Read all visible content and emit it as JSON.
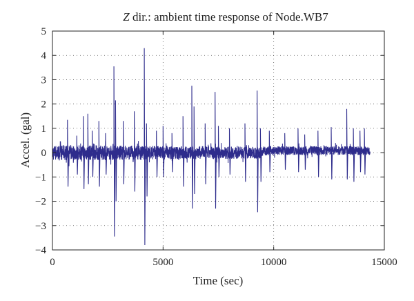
{
  "chart_data": {
    "type": "line",
    "title_italic": "Z",
    "title_rest": " dir.: ambient time response of Node.WB7",
    "xlabel": "Time (sec)",
    "ylabel": "Accel. (gal)",
    "xlim": [
      0,
      15000
    ],
    "ylim": [
      -4,
      5
    ],
    "xticks": [
      0,
      5000,
      10000,
      15000
    ],
    "xtick_labels": [
      "0",
      "5000",
      "10000",
      "15000"
    ],
    "yticks": [
      -4,
      -3,
      -2,
      -1,
      0,
      1,
      2,
      3,
      4,
      5
    ],
    "ytick_labels": [
      "−4",
      "−3",
      "−2",
      "−1",
      "0",
      "1",
      "2",
      "3",
      "4",
      "5"
    ],
    "grid": true,
    "line_color": "#2e2c8c",
    "series": [
      {
        "x_range": [
          0,
          14350
        ],
        "spikes": [
          {
            "x": 680,
            "max": 1.35,
            "min": -1.4
          },
          {
            "x": 1100,
            "max": 0.7,
            "min": -0.9
          },
          {
            "x": 1400,
            "max": 1.5,
            "min": -1.5
          },
          {
            "x": 1600,
            "max": 1.6,
            "min": -1.3
          },
          {
            "x": 1800,
            "max": 0.9,
            "min": -1.0
          },
          {
            "x": 2100,
            "max": 1.3,
            "min": -1.4
          },
          {
            "x": 2400,
            "max": 0.8,
            "min": -0.9
          },
          {
            "x": 2780,
            "max": 3.55,
            "min": -3.45
          },
          {
            "x": 2850,
            "max": 2.15,
            "min": -2.0
          },
          {
            "x": 3200,
            "max": 1.3,
            "min": -1.3
          },
          {
            "x": 3700,
            "max": 1.7,
            "min": -1.6
          },
          {
            "x": 4150,
            "max": 4.3,
            "min": -3.8
          },
          {
            "x": 4250,
            "max": 1.2,
            "min": -1.8
          },
          {
            "x": 4700,
            "max": 0.9,
            "min": -1.0
          },
          {
            "x": 5000,
            "max": 1.1,
            "min": -1.0
          },
          {
            "x": 5400,
            "max": 0.8,
            "min": -0.8
          },
          {
            "x": 5900,
            "max": 1.5,
            "min": -1.4
          },
          {
            "x": 6300,
            "max": 2.75,
            "min": -2.3
          },
          {
            "x": 6400,
            "max": 1.9,
            "min": -1.7
          },
          {
            "x": 6900,
            "max": 1.2,
            "min": -1.3
          },
          {
            "x": 7350,
            "max": 2.5,
            "min": -2.3
          },
          {
            "x": 7500,
            "max": 1.1,
            "min": -1.0
          },
          {
            "x": 8000,
            "max": 1.0,
            "min": -0.9
          },
          {
            "x": 8700,
            "max": 1.2,
            "min": -1.2
          },
          {
            "x": 9250,
            "max": 2.55,
            "min": -2.45
          },
          {
            "x": 9400,
            "max": 1.0,
            "min": -1.2
          },
          {
            "x": 9800,
            "max": 0.9,
            "min": -0.8
          },
          {
            "x": 10500,
            "max": 0.8,
            "min": -0.7
          },
          {
            "x": 11100,
            "max": 1.0,
            "min": -0.8
          },
          {
            "x": 11400,
            "max": 0.75,
            "min": -0.7
          },
          {
            "x": 12000,
            "max": 0.9,
            "min": -1.0
          },
          {
            "x": 12600,
            "max": 1.05,
            "min": -1.1
          },
          {
            "x": 13300,
            "max": 1.8,
            "min": -1.1
          },
          {
            "x": 13600,
            "max": 1.0,
            "min": -1.2
          },
          {
            "x": 13900,
            "max": 0.9,
            "min": -0.8
          },
          {
            "x": 14100,
            "max": 1.0,
            "min": -0.9
          }
        ]
      }
    ]
  }
}
